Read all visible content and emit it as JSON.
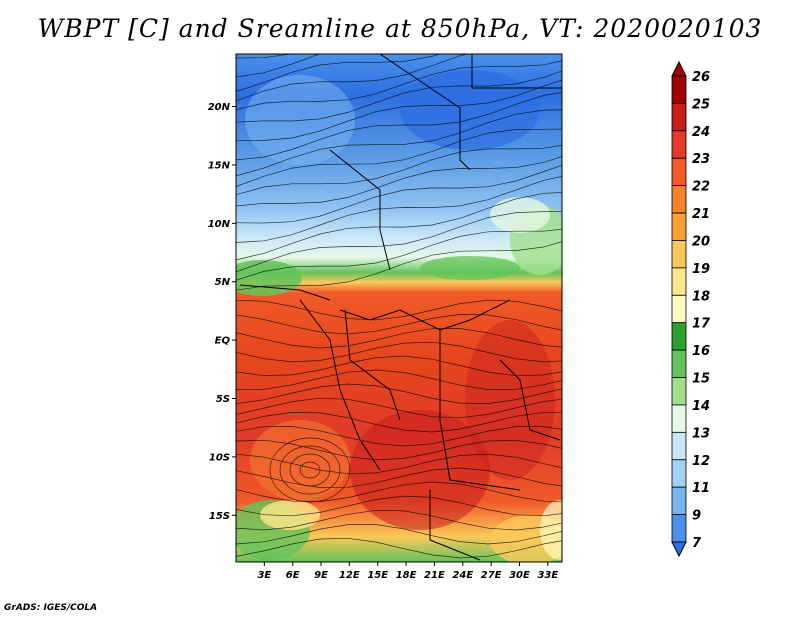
{
  "title": "WBPT [C] and Sreamline at 850hPa, VT: 2020020103",
  "credit": "GrADS: IGES/COLA",
  "map": {
    "lat_labels": [
      "20N",
      "15N",
      "10N",
      "5N",
      "EQ",
      "5S",
      "10S",
      "15S"
    ],
    "lat_values": [
      20,
      15,
      10,
      5,
      0,
      -5,
      -10,
      -15
    ],
    "lon_labels": [
      "3E",
      "6E",
      "9E",
      "12E",
      "15E",
      "18E",
      "21E",
      "24E",
      "27E",
      "30E",
      "33E"
    ],
    "lon_values": [
      3,
      6,
      9,
      12,
      15,
      18,
      21,
      24,
      27,
      30,
      33
    ],
    "lat_range": [
      -19,
      24.5
    ],
    "lon_range": [
      0,
      34.5
    ]
  },
  "colorbar": {
    "labels": [
      "26",
      "25",
      "24",
      "23",
      "22",
      "21",
      "20",
      "19",
      "18",
      "17",
      "16",
      "15",
      "14",
      "13",
      "12",
      "11",
      "9",
      "7"
    ],
    "colors": [
      "#a00000",
      "#c81e1e",
      "#e13c28",
      "#f05a28",
      "#fa8228",
      "#fca032",
      "#fcc85a",
      "#fce88c",
      "#fcfcc0",
      "#2ca02c",
      "#64c35a",
      "#a0e08c",
      "#e6f8e6",
      "#c8e6f8",
      "#a0d2f5",
      "#78b4f0",
      "#4b91eb",
      "#2d6ee1"
    ]
  }
}
